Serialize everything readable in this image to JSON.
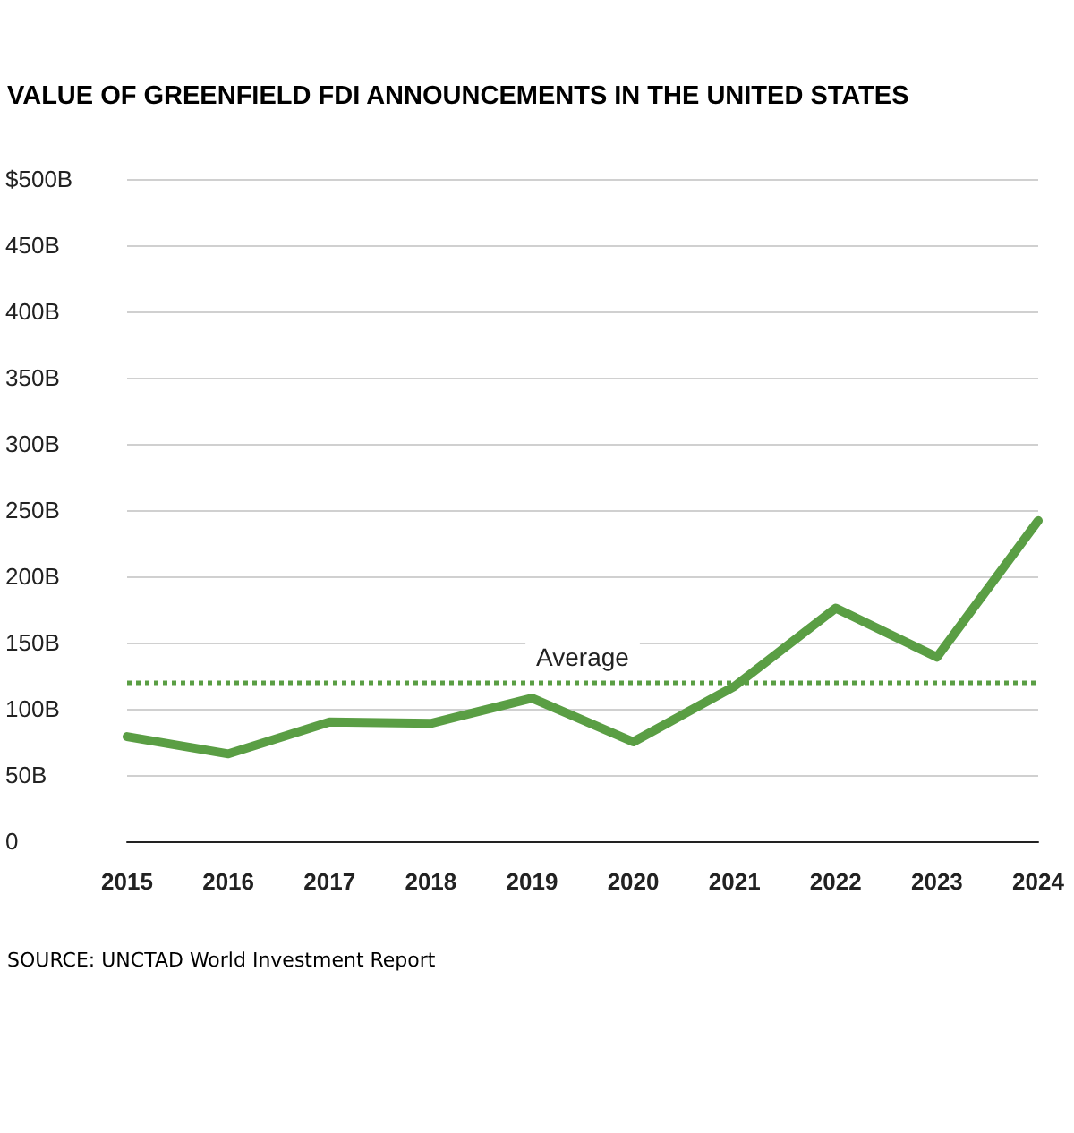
{
  "chart_data": {
    "type": "line",
    "title": "VALUE OF GREENFIELD FDI ANNOUNCEMENTS IN THE UNITED STATES",
    "categories": [
      "2015",
      "2016",
      "2017",
      "2018",
      "2019",
      "2020",
      "2021",
      "2022",
      "2023",
      "2024"
    ],
    "series": [
      {
        "color": "#5a9e44",
        "values": [
          79,
          66,
          90,
          89,
          108,
          75,
          117,
          176,
          139,
          242
        ]
      }
    ],
    "ylim": [
      0,
      500
    ],
    "yticks": [
      {
        "value": 0,
        "label": "0"
      },
      {
        "value": 50,
        "label": "50B"
      },
      {
        "value": 100,
        "label": "100B"
      },
      {
        "value": 150,
        "label": "150B"
      },
      {
        "value": 200,
        "label": "200B"
      },
      {
        "value": 250,
        "label": "250B"
      },
      {
        "value": 300,
        "label": "300B"
      },
      {
        "value": 350,
        "label": "350B"
      },
      {
        "value": 400,
        "label": "400B"
      },
      {
        "value": 450,
        "label": "450B"
      },
      {
        "value": 500,
        "label": "$500B"
      }
    ],
    "ref_lines": [
      {
        "axis": "y",
        "value": 120,
        "label": "Average",
        "color": "#5a9e44",
        "line_style": "dotted"
      }
    ],
    "annotations": [
      "SOURCE:  UNCTAD World Investment Report"
    ],
    "grid": "y",
    "marker": "none",
    "line_style": "solid"
  }
}
